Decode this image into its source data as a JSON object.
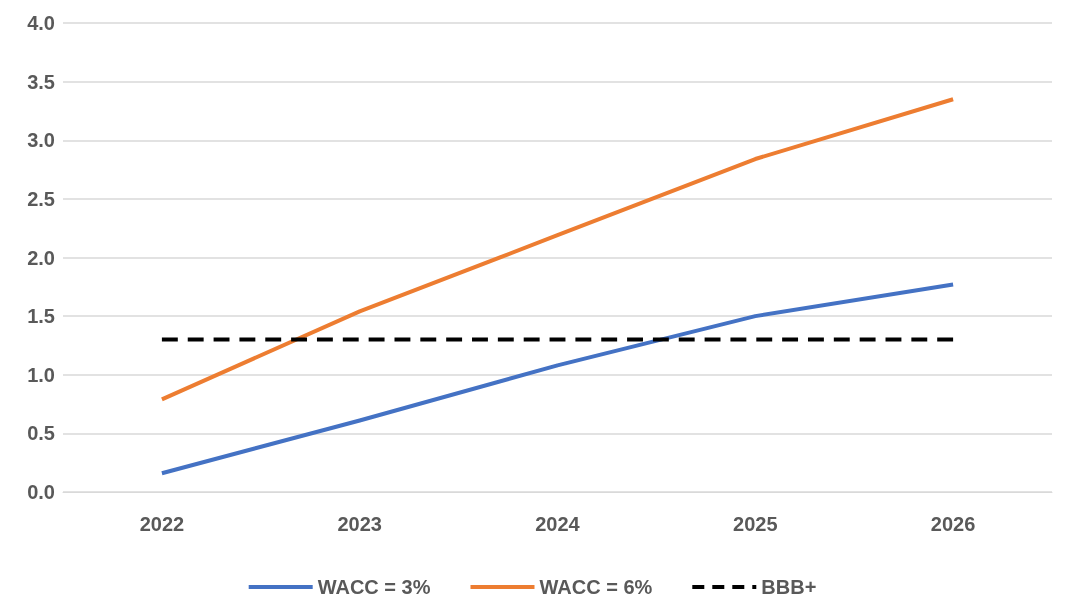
{
  "chart_data": {
    "type": "line",
    "categories": [
      "2022",
      "2023",
      "2024",
      "2025",
      "2026"
    ],
    "series": [
      {
        "name": "WACC = 3%",
        "color": "#4472c4",
        "values": [
          0.16,
          0.61,
          1.08,
          1.5,
          1.77
        ]
      },
      {
        "name": "WACC = 6%",
        "color": "#ed7d31",
        "values": [
          0.79,
          1.54,
          2.19,
          2.84,
          3.35
        ]
      },
      {
        "name": "BBB+",
        "color": "#000000",
        "line_style": "dashed",
        "values": [
          1.3,
          1.3,
          1.3,
          1.3,
          1.3
        ]
      }
    ],
    "ylim": [
      0,
      4
    ],
    "yticks": [
      {
        "value": 0,
        "label": "0.0"
      },
      {
        "value": 0.5,
        "label": "0.5"
      },
      {
        "value": 1,
        "label": "1.0"
      },
      {
        "value": 1.5,
        "label": "1.5"
      },
      {
        "value": 2,
        "label": "2.0"
      },
      {
        "value": 2.5,
        "label": "2.5"
      },
      {
        "value": 3,
        "label": "3.0"
      },
      {
        "value": 3.5,
        "label": "3.5"
      },
      {
        "value": 4,
        "label": "4.0"
      }
    ],
    "grid": "y",
    "legend": "bottom",
    "marker": "none",
    "line_style": "solid"
  }
}
